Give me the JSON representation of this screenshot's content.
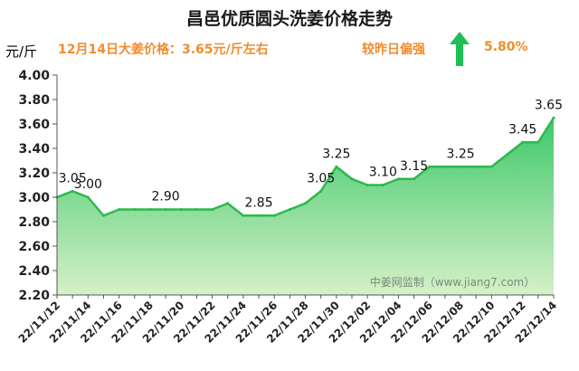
{
  "header": {
    "title": "昌邑优质圆头洗姜价格走势",
    "unit": "元/斤",
    "price_line": "12月14日大姜价格：3.65元/斤左右",
    "compare": "较昨日偏强",
    "change_pct": "5.80%",
    "arrow_icon": "up-arrow-icon",
    "arrow_color": "#1fbf55"
  },
  "chart_data": {
    "type": "area",
    "x": [
      "22/11/12",
      "22/11/13",
      "22/11/14",
      "22/11/15",
      "22/11/16",
      "22/11/17",
      "22/11/18",
      "22/11/19",
      "22/11/20",
      "22/11/21",
      "22/11/22",
      "22/11/23",
      "22/11/24",
      "22/11/25",
      "22/11/26",
      "22/11/27",
      "22/11/28",
      "22/11/29",
      "22/11/30",
      "22/12/01",
      "22/12/02",
      "22/12/03",
      "22/12/04",
      "22/12/05",
      "22/12/06",
      "22/12/07",
      "22/12/08",
      "22/12/09",
      "22/12/10",
      "22/12/11",
      "22/12/12",
      "22/12/13",
      "22/12/14"
    ],
    "tick_labels": [
      "22/11/12",
      "22/11/14",
      "22/11/16",
      "22/11/18",
      "22/11/20",
      "22/11/22",
      "22/11/24",
      "22/11/26",
      "22/11/28",
      "22/11/30",
      "22/12/02",
      "22/12/04",
      "22/12/06",
      "22/12/08",
      "22/12/10",
      "22/12/12",
      "22/12/14"
    ],
    "values": [
      3.0,
      3.05,
      3.0,
      2.85,
      2.9,
      2.9,
      2.9,
      2.9,
      2.9,
      2.9,
      2.9,
      2.95,
      2.85,
      2.85,
      2.85,
      2.9,
      2.95,
      3.05,
      3.25,
      3.15,
      3.1,
      3.1,
      3.15,
      3.15,
      3.25,
      3.25,
      3.25,
      3.25,
      3.25,
      3.35,
      3.45,
      3.45,
      3.65
    ],
    "data_labels": [
      {
        "index": 1,
        "text": "3.05"
      },
      {
        "index": 2,
        "text": "3.00"
      },
      {
        "index": 7,
        "text": "2.90"
      },
      {
        "index": 13,
        "text": "2.85"
      },
      {
        "index": 17,
        "text": "3.05"
      },
      {
        "index": 18,
        "text": "3.25"
      },
      {
        "index": 21,
        "text": "3.10"
      },
      {
        "index": 23,
        "text": "3.15"
      },
      {
        "index": 26,
        "text": "3.25"
      },
      {
        "index": 30,
        "text": "3.45"
      },
      {
        "index": 32,
        "text": "3.65"
      }
    ],
    "ylim": [
      2.2,
      4.0
    ],
    "yticks": [
      "2.20",
      "2.40",
      "2.60",
      "2.80",
      "3.00",
      "3.20",
      "3.40",
      "3.60",
      "3.80",
      "4.00"
    ],
    "ylabel": "元/斤",
    "grid": false,
    "colors": {
      "line": "#2db84d",
      "fill_top": "#3ec96a",
      "fill_bottom": "#d6f0c8"
    },
    "watermark": "中姜网监制（www.jiang7.com）"
  }
}
